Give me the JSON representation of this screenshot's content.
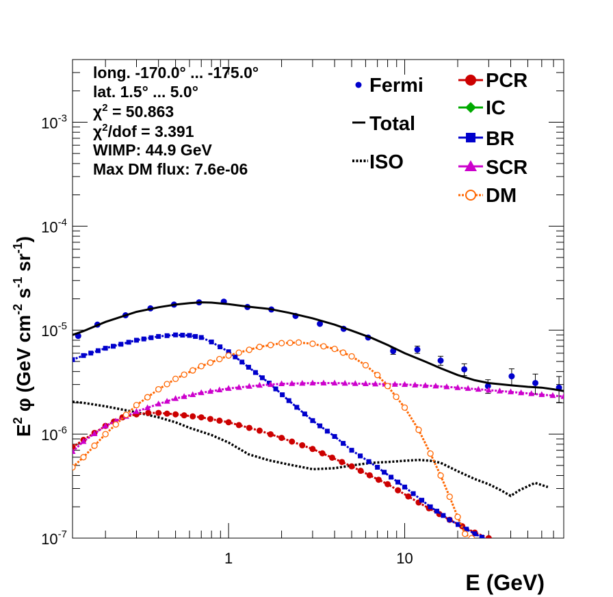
{
  "chart_data": {
    "type": "scatter",
    "xscale": "log",
    "yscale": "log",
    "xlim": [
      0.13,
      80
    ],
    "ylim": [
      1e-07,
      0.004
    ],
    "xlabel": "E (GeV)",
    "ylabel": {
      "prefix": "E",
      "prefix_sup": "2",
      "symbol": "φ",
      "unit_open": " (GeV cm",
      "exp1": "-2",
      "mid1": " s",
      "exp2": "-1",
      "mid2": " sr",
      "exp3": "-1",
      "close": ")"
    },
    "x_tick_labels": [
      {
        "value": 1,
        "label": "1"
      },
      {
        "value": 10,
        "label": "10"
      }
    ],
    "y_tick_labels": [
      {
        "value": 1e-07,
        "base": "10",
        "exp": "-7"
      },
      {
        "value": 1e-06,
        "base": "10",
        "exp": "-6"
      },
      {
        "value": 1e-05,
        "base": "10",
        "exp": "-5"
      },
      {
        "value": 0.0001,
        "base": "10",
        "exp": "-4"
      },
      {
        "value": 0.001,
        "base": "10",
        "exp": "-3"
      }
    ],
    "info_box": [
      {
        "text": "long. -170.0° ... -175.0°"
      },
      {
        "text": "lat. 1.5° ... 5.0°"
      },
      {
        "pre": "χ",
        "sup": "2",
        "post": " = 50.863"
      },
      {
        "pre": "χ",
        "sup": "2",
        "post": "/dof = 3.391"
      },
      {
        "text": "WIMP: 44.9 GeV"
      },
      {
        "text": "Max DM flux: 7.6e-06"
      }
    ],
    "legend_left": [
      {
        "label": "Fermi",
        "style": "point",
        "color": "#0000cc"
      },
      {
        "label": "Total",
        "style": "line",
        "color": "#000000"
      },
      {
        "label": "ISO",
        "style": "dotted",
        "color": "#000000"
      }
    ],
    "legend_right": [
      {
        "label": "PCR",
        "marker": "circle",
        "color": "#cc0000"
      },
      {
        "label": "IC",
        "marker": "diamond",
        "color": "#00aa00"
      },
      {
        "label": "BR",
        "marker": "square",
        "color": "#0000cc"
      },
      {
        "label": "SCR",
        "marker": "triangle",
        "color": "#cc00cc"
      },
      {
        "label": "DM",
        "marker": "open-circle",
        "color": "#ff6600"
      }
    ],
    "series": [
      {
        "name": "Fermi",
        "style": "points",
        "color": "#0000cc",
        "x": [
          0.14,
          0.18,
          0.26,
          0.36,
          0.49,
          0.68,
          0.94,
          1.28,
          1.75,
          2.4,
          3.3,
          4.5,
          6.2,
          8.6,
          11.8,
          16.0,
          21.8,
          29.7,
          40.5,
          55.2,
          75.2
        ],
        "y": [
          8.8e-06,
          1.13e-05,
          1.39e-05,
          1.62e-05,
          1.76e-05,
          1.85e-05,
          1.88e-05,
          1.67e-05,
          1.58e-05,
          1.37e-05,
          1.15e-05,
          1.03e-05,
          8.5e-06,
          6.3e-06,
          6.5e-06,
          5.1e-06,
          4.2e-06,
          2.9e-06,
          3.6e-06,
          3.1e-06,
          2.8e-06
        ],
        "err_rel": [
          0.03,
          0.03,
          0.03,
          0.03,
          0.03,
          0.03,
          0.03,
          0.03,
          0.03,
          0.03,
          0.04,
          0.04,
          0.05,
          0.07,
          0.08,
          0.1,
          0.13,
          0.15,
          0.18,
          0.22,
          0.28
        ]
      },
      {
        "name": "Total",
        "style": "line",
        "color": "#000000",
        "x": [
          0.13,
          0.15,
          0.2,
          0.3,
          0.4,
          0.5,
          0.6,
          0.7,
          0.8,
          1.0,
          1.3,
          1.7,
          2.2,
          3.0,
          4.0,
          5.0,
          6.5,
          8.0,
          10.0,
          13.0,
          16.0,
          20.0,
          25.0,
          30.0,
          40.0,
          50.0,
          60.0,
          70.0,
          80.0
        ],
        "y": [
          9e-06,
          9.8e-06,
          1.2e-05,
          1.5e-05,
          1.66e-05,
          1.76e-05,
          1.82e-05,
          1.85e-05,
          1.84e-05,
          1.78e-05,
          1.68e-05,
          1.6e-05,
          1.47e-05,
          1.3e-05,
          1.13e-05,
          9.9e-06,
          8.4e-06,
          7.2e-06,
          6e-06,
          5e-06,
          4.3e-06,
          3.7e-06,
          3.3e-06,
          3.1e-06,
          2.95e-06,
          2.85e-06,
          2.8e-06,
          2.7e-06,
          2.6e-06
        ]
      },
      {
        "name": "ISO",
        "style": "dotted",
        "color": "#000000",
        "x": [
          0.13,
          0.15,
          0.2,
          0.25,
          0.3,
          0.4,
          0.5,
          0.6,
          0.8,
          1.0,
          1.3,
          1.7,
          2.2,
          3.0,
          4.0,
          5.0,
          6.5,
          8.0,
          10.0,
          12.0,
          14.0,
          16.0,
          20.0,
          25.0,
          30.0,
          35.0,
          40.0,
          45.0,
          55.0,
          65.0
        ],
        "y": [
          2.05e-06,
          2e-06,
          1.85e-06,
          1.72e-06,
          1.62e-06,
          1.45e-06,
          1.3e-06,
          1.15e-06,
          9.8e-07,
          8.3e-07,
          6.4e-07,
          5.6e-07,
          5.1e-07,
          4.6e-07,
          4.7e-07,
          5e-07,
          5.3e-07,
          5.4e-07,
          5.55e-07,
          5.65e-07,
          5.55e-07,
          5.3e-07,
          4.4e-07,
          3.7e-07,
          3.3e-07,
          2.9e-07,
          2.55e-07,
          2.9e-07,
          3.4e-07,
          3.1e-07
        ]
      },
      {
        "name": "PCR",
        "style": "markers",
        "marker": "circle",
        "color": "#cc0000",
        "x": [
          0.13,
          0.15,
          0.2,
          0.25,
          0.3,
          0.35,
          0.4,
          0.5,
          0.7,
          1.0,
          1.5,
          2.0,
          3.0,
          5.0,
          8.0,
          12.0,
          18.0,
          25.0,
          30.0
        ],
        "y": [
          7.5e-07,
          8.8e-07,
          1.2e-06,
          1.45e-06,
          1.55e-06,
          1.6e-06,
          1.6e-06,
          1.55e-06,
          1.45e-06,
          1.3e-06,
          1.08e-06,
          9.2e-07,
          7.2e-07,
          4.9e-07,
          3.3e-07,
          2.2e-07,
          1.5e-07,
          1.13e-07,
          1e-07
        ]
      },
      {
        "name": "BR",
        "style": "markers",
        "marker": "square",
        "color": "#0000cc",
        "x": [
          0.13,
          0.15,
          0.2,
          0.3,
          0.4,
          0.5,
          0.6,
          0.7,
          0.8,
          1.0,
          1.3,
          1.7,
          2.2,
          3.0,
          4.0,
          5.0,
          7.0,
          10.0,
          14.0,
          18.0,
          25.0,
          30.0
        ],
        "y": [
          5.2e-06,
          5.7e-06,
          6.7e-06,
          8e-06,
          8.7e-06,
          9e-06,
          8.9e-06,
          8.5e-06,
          7.7e-06,
          6.2e-06,
          4.4e-06,
          3.1e-06,
          2.1e-06,
          1.35e-06,
          9.5e-07,
          7e-07,
          4.8e-07,
          3.1e-07,
          2e-07,
          1.5e-07,
          1.1e-07,
          9.5e-08
        ]
      },
      {
        "name": "SCR",
        "style": "markers",
        "marker": "triangle",
        "color": "#cc00cc",
        "x": [
          0.13,
          0.15,
          0.2,
          0.3,
          0.4,
          0.5,
          0.7,
          1.0,
          1.5,
          2.0,
          3.0,
          4.0,
          6.0,
          10.0,
          15.0,
          20.0,
          30.0,
          40.0,
          60.0,
          80.0
        ],
        "y": [
          6.8e-07,
          8.5e-07,
          1.2e-06,
          1.65e-06,
          1.95e-06,
          2.2e-06,
          2.5e-06,
          2.75e-06,
          2.95e-06,
          3.05e-06,
          3.1e-06,
          3.1e-06,
          3.05e-06,
          3e-06,
          2.9e-06,
          2.8e-06,
          2.65e-06,
          2.55e-06,
          2.4e-06,
          2.3e-06
        ]
      },
      {
        "name": "DM",
        "style": "markers",
        "marker": "open-circle",
        "color": "#ff6600",
        "x": [
          0.13,
          0.15,
          0.2,
          0.3,
          0.4,
          0.5,
          0.7,
          1.0,
          1.5,
          2.0,
          2.5,
          3.0,
          4.0,
          5.0,
          6.0,
          7.0,
          8.0,
          10.0,
          12.0,
          14.0,
          16.0,
          18.0,
          20.0,
          22.0,
          24.0
        ],
        "y": [
          4.8e-07,
          6e-07,
          1e-06,
          1.9e-06,
          2.7e-06,
          3.4e-06,
          4.5e-06,
          5.7e-06,
          6.9e-06,
          7.5e-06,
          7.6e-06,
          7.4e-06,
          6.6e-06,
          5.6e-06,
          4.6e-06,
          3.7e-06,
          2.9e-06,
          1.8e-06,
          1.1e-06,
          6.5e-07,
          4e-07,
          2.5e-07,
          1.6e-07,
          1.1e-07,
          1e-07
        ]
      }
    ]
  }
}
